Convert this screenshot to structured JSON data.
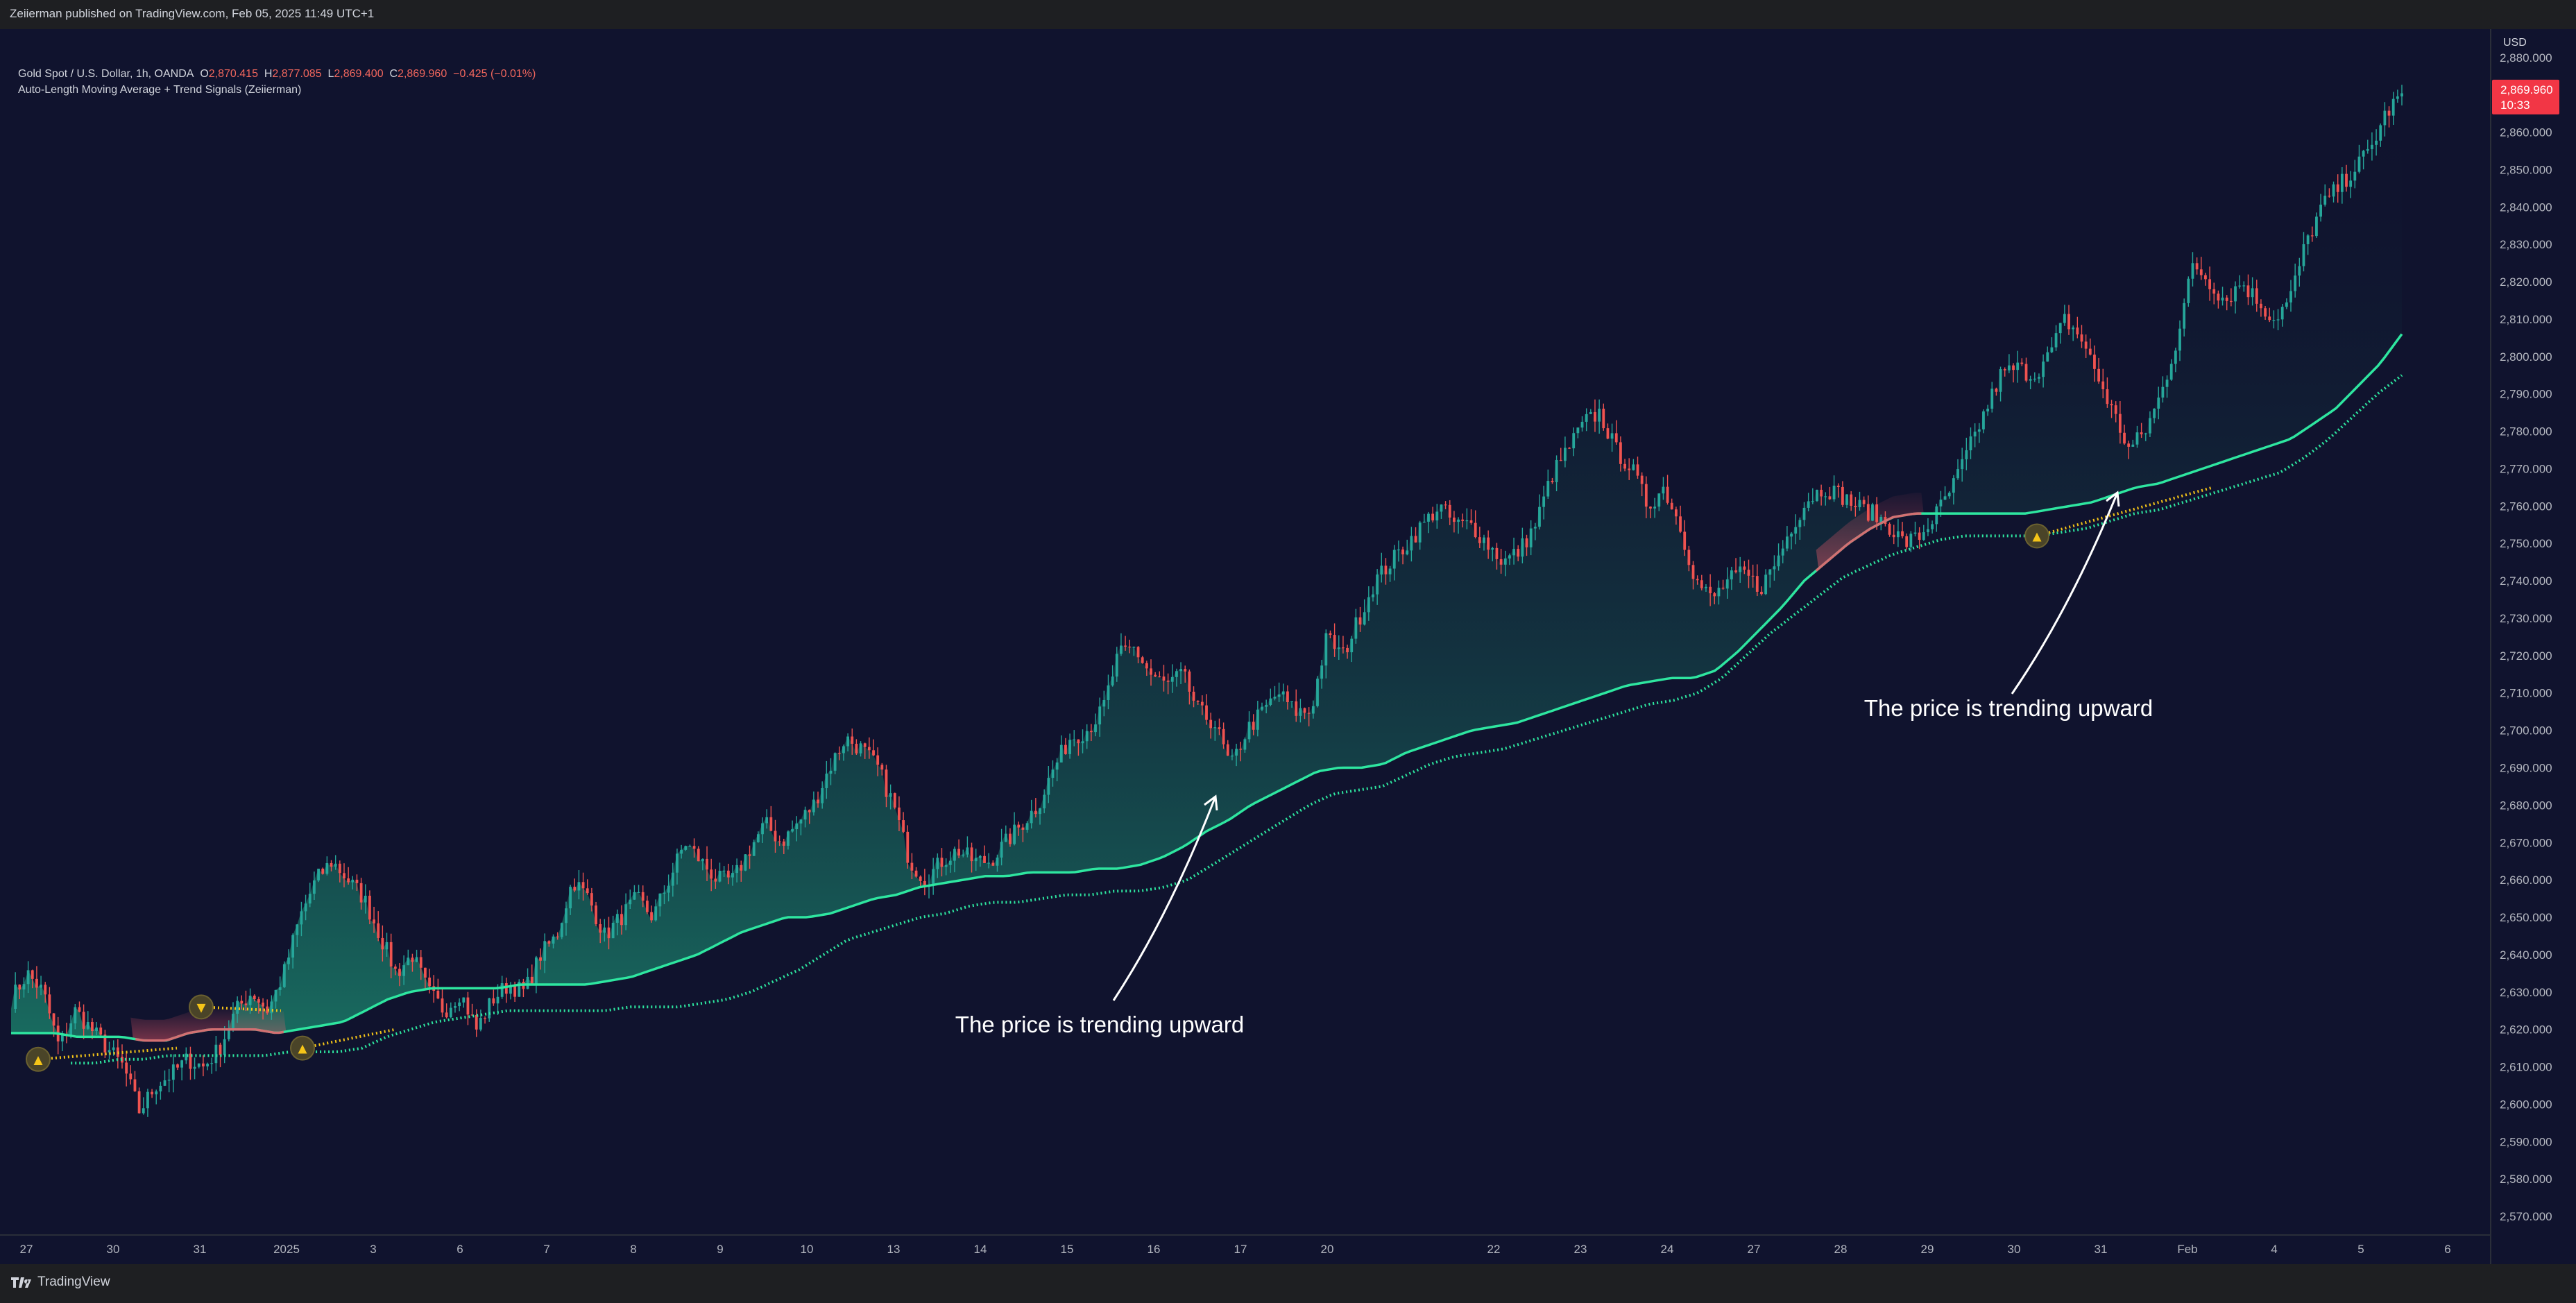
{
  "header": {
    "published": "Zeiierman published on TradingView.com, Feb 05, 2025 11:49 UTC+1"
  },
  "legend": {
    "symbol": "Gold Spot / U.S. Dollar, 1h, OANDA",
    "open_label": "O",
    "open": "2,870.415",
    "high_label": "H",
    "high": "2,877.085",
    "low_label": "L",
    "low": "2,869.400",
    "close_label": "C",
    "close": "2,869.960",
    "change": "−0.425 (−0.01%)",
    "indicator": "Auto-Length Moving Average + Trend Signals (Zeiierman)"
  },
  "price_axis": {
    "currency": "USD",
    "last_price": "2,869.960",
    "countdown": "10:33"
  },
  "footer": {
    "brand": "TradingView"
  },
  "colors": {
    "background": "#10132e",
    "up": "#26a69a",
    "down": "#ef5350",
    "ma_bull": "#2ee6a0",
    "ma_bear": "#ef5a6a",
    "signal": "#f5c518",
    "last_price_badge": "#f23645"
  },
  "chart_data": {
    "type": "candlestick",
    "title": "",
    "y_axis": {
      "min": 2565,
      "max": 2882,
      "side": "right",
      "ticks": [
        2570,
        2580,
        2590,
        2600,
        2610,
        2620,
        2630,
        2640,
        2650,
        2660,
        2670,
        2680,
        2690,
        2700,
        2710,
        2720,
        2730,
        2740,
        2750,
        2760,
        2770,
        2780,
        2790,
        2800,
        2810,
        2820,
        2830,
        2840,
        2850,
        2860,
        2870,
        2880
      ]
    },
    "x_axis": {
      "tick_labels": [
        "27",
        "30",
        "31",
        "2025",
        "3",
        "6",
        "7",
        "8",
        "9",
        "10",
        "13",
        "14",
        "15",
        "16",
        "17",
        "20",
        "22",
        "23",
        "24",
        "27",
        "28",
        "29",
        "30",
        "31",
        "Feb",
        "4",
        "5",
        "6"
      ]
    },
    "grid": false,
    "price_path": [
      2628,
      2635,
      2630,
      2615,
      2625,
      2620,
      2615,
      2610,
      2598,
      2605,
      2608,
      2612,
      2610,
      2615,
      2625,
      2630,
      2625,
      2635,
      2650,
      2660,
      2665,
      2660,
      2655,
      2645,
      2635,
      2640,
      2630,
      2625,
      2630,
      2620,
      2628,
      2632,
      2630,
      2640,
      2645,
      2660,
      2655,
      2645,
      2650,
      2655,
      2650,
      2660,
      2670,
      2665,
      2660,
      2660,
      2668,
      2675,
      2670,
      2675,
      2680,
      2690,
      2698,
      2695,
      2690,
      2680,
      2665,
      2660,
      2665,
      2668,
      2665,
      2665,
      2670,
      2675,
      2680,
      2690,
      2698,
      2700,
      2705,
      2720,
      2722,
      2715,
      2712,
      2715,
      2705,
      2702,
      2690,
      2700,
      2705,
      2710,
      2705,
      2705,
      2725,
      2720,
      2730,
      2740,
      2745,
      2750,
      2755,
      2760,
      2755,
      2755,
      2750,
      2745,
      2748,
      2755,
      2768,
      2775,
      2782,
      2785,
      2775,
      2770,
      2760,
      2765,
      2755,
      2740,
      2735,
      2740,
      2742,
      2738,
      2745,
      2755,
      2762,
      2765,
      2763,
      2760,
      2758,
      2755,
      2750,
      2752,
      2758,
      2765,
      2775,
      2785,
      2795,
      2797,
      2795,
      2800,
      2810,
      2805,
      2795,
      2785,
      2775,
      2780,
      2790,
      2805,
      2825,
      2820,
      2815,
      2820,
      2815,
      2810,
      2815,
      2830,
      2840,
      2845,
      2850,
      2855,
      2865,
      2870
    ],
    "ma_fast": [
      2619,
      2619,
      2619,
      2618,
      2618,
      2618,
      2617,
      2617,
      2619,
      2620,
      2620,
      2620,
      2619,
      2620,
      2621,
      2622,
      2625,
      2628,
      2630,
      2631,
      2631,
      2631,
      2631,
      2632,
      2632,
      2632,
      2632,
      2633,
      2634,
      2636,
      2638,
      2640,
      2643,
      2646,
      2648,
      2650,
      2650,
      2651,
      2653,
      2655,
      2656,
      2658,
      2659,
      2660,
      2661,
      2661,
      2662,
      2662,
      2662,
      2663,
      2663,
      2664,
      2666,
      2669,
      2673,
      2676,
      2680,
      2683,
      2686,
      2689,
      2690,
      2690,
      2691,
      2694,
      2696,
      2698,
      2700,
      2701,
      2702,
      2704,
      2706,
      2708,
      2710,
      2712,
      2713,
      2714,
      2714,
      2716,
      2721,
      2727,
      2733,
      2740,
      2745,
      2750,
      2754,
      2757,
      2758,
      2758,
      2758,
      2758,
      2758,
      2758,
      2759,
      2760,
      2761,
      2763,
      2765,
      2766,
      2768,
      2770,
      2772,
      2774,
      2776,
      2778,
      2782,
      2786,
      2792,
      2798,
      2806
    ],
    "ma_slow": [
      2611,
      2611,
      2612,
      2612,
      2613,
      2613,
      2613,
      2613,
      2613,
      2614,
      2614,
      2614,
      2615,
      2618,
      2620,
      2622,
      2623,
      2624,
      2625,
      2625,
      2625,
      2625,
      2625,
      2626,
      2626,
      2626,
      2627,
      2628,
      2630,
      2633,
      2636,
      2640,
      2644,
      2646,
      2648,
      2650,
      2651,
      2653,
      2654,
      2654,
      2655,
      2656,
      2656,
      2657,
      2657,
      2658,
      2660,
      2664,
      2668,
      2672,
      2676,
      2680,
      2683,
      2684,
      2685,
      2688,
      2691,
      2693,
      2694,
      2695,
      2697,
      2699,
      2701,
      2703,
      2705,
      2707,
      2708,
      2710,
      2714,
      2720,
      2726,
      2731,
      2736,
      2741,
      2744,
      2747,
      2749,
      2751,
      2752,
      2752,
      2752,
      2752,
      2753,
      2754,
      2756,
      2758,
      2759,
      2761,
      2763,
      2765,
      2767,
      2769,
      2773,
      2778,
      2784,
      2790,
      2795
    ],
    "signals": [
      {
        "type": "buy",
        "label": "▲",
        "price": 2612
      },
      {
        "type": "sell",
        "label": "▼",
        "price": 2626
      },
      {
        "type": "buy",
        "label": "▲",
        "price": 2615
      },
      {
        "type": "buy",
        "label": "▲",
        "price": 2752
      }
    ],
    "annotations": [
      {
        "text": "The price is trending upward",
        "arrow_to_price": 2686
      },
      {
        "text": "The price is trending upward",
        "arrow_to_price": 2768
      }
    ]
  }
}
